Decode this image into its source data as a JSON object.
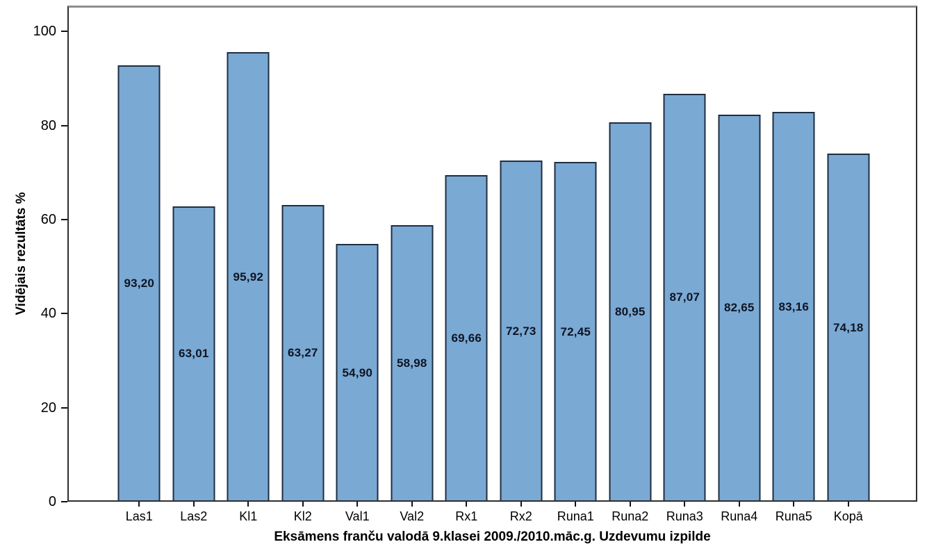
{
  "chart_data": {
    "type": "bar",
    "title": "",
    "xlabel": "Eksāmens franču valodā 9.klasei 2009./2010.māc.g. Uzdevumu izpilde",
    "ylabel": "Vidējais rezultāts %",
    "categories": [
      "Las1",
      "Las2",
      "Kl1",
      "Kl2",
      "Val1",
      "Val2",
      "Rx1",
      "Rx2",
      "Runa1",
      "Runa2",
      "Runa3",
      "Runa4",
      "Runa5",
      "Kopā"
    ],
    "values": [
      93.2,
      63.01,
      95.92,
      63.27,
      54.9,
      58.98,
      69.66,
      72.73,
      72.45,
      80.95,
      87.07,
      82.65,
      83.16,
      74.18
    ],
    "values_display": [
      "93,20",
      "63,01",
      "95,92",
      "63,27",
      "54,90",
      "58,98",
      "69,66",
      "72,73",
      "72,45",
      "80,95",
      "87,07",
      "82,65",
      "83,16",
      "74,18"
    ],
    "yticks": [
      0,
      20,
      40,
      60,
      80,
      100
    ],
    "ylim": [
      0,
      105.5
    ],
    "grid": false,
    "legend": null,
    "bar_color": "#7AA9D4",
    "bar_border_color": "#1E2D40",
    "value_label_color": "#0F1422",
    "axis_text_color": "#000000"
  }
}
